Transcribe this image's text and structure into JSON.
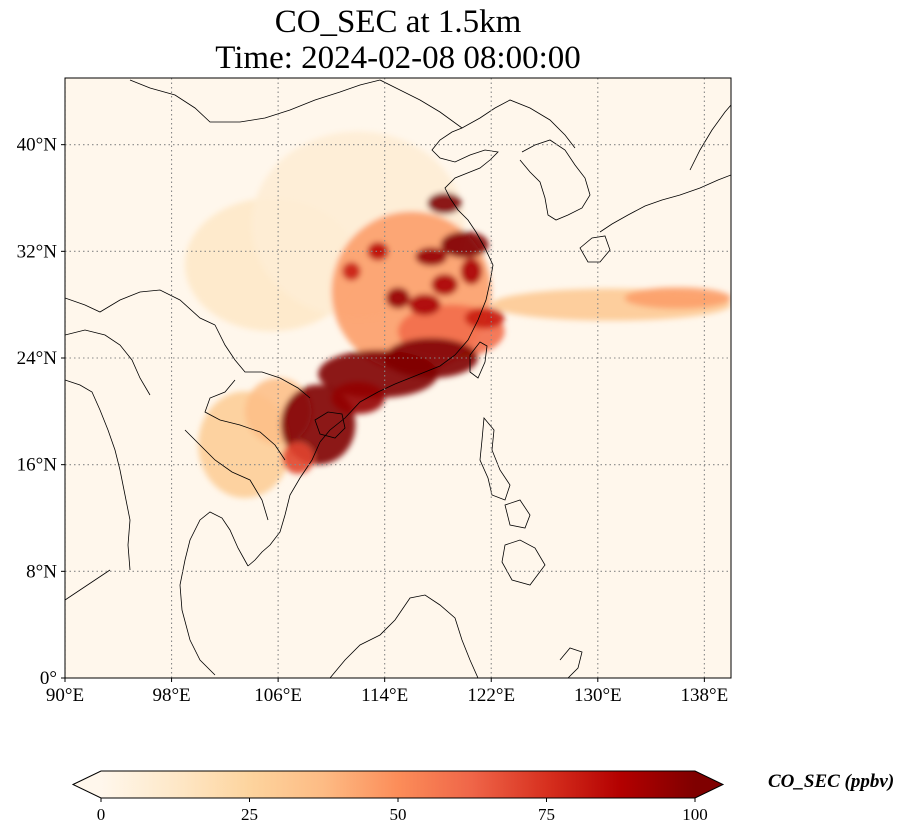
{
  "title": {
    "line1": "CO_SEC at 1.5km",
    "line2": "Time: 2024-02-08 08:00:00"
  },
  "map": {
    "extent": {
      "lon_min": 90,
      "lon_max": 140,
      "lat_min": 0,
      "lat_max": 45
    },
    "projection": "PlateCarree",
    "gridlines": "dotted",
    "colormap": "OrRd",
    "x_ticks": [
      {
        "value": 90,
        "label": "90°E"
      },
      {
        "value": 98,
        "label": "98°E"
      },
      {
        "value": 106,
        "label": "106°E"
      },
      {
        "value": 114,
        "label": "114°E"
      },
      {
        "value": 122,
        "label": "122°E"
      },
      {
        "value": 130,
        "label": "130°E"
      },
      {
        "value": 138,
        "label": "138°E"
      }
    ],
    "y_ticks": [
      {
        "value": 0,
        "label": "0°"
      },
      {
        "value": 8,
        "label": "8°N"
      },
      {
        "value": 16,
        "label": "16°N"
      },
      {
        "value": 24,
        "label": "24°N"
      },
      {
        "value": 32,
        "label": "32°N"
      },
      {
        "value": 40,
        "label": "40°N"
      }
    ],
    "plumes": [
      {
        "lon": 105.5,
        "lat": 31.0,
        "r_lon": 6.5,
        "r_lat": 5.0,
        "value": 12
      },
      {
        "lon": 112.0,
        "lat": 34.0,
        "r_lon": 8.0,
        "r_lat": 7.0,
        "value": 8
      },
      {
        "lon": 103.5,
        "lat": 17.5,
        "r_lon": 3.5,
        "r_lat": 4.0,
        "value": 28
      },
      {
        "lon": 106.0,
        "lat": 20.0,
        "r_lon": 2.5,
        "r_lat": 2.5,
        "value": 35
      },
      {
        "lon": 116.0,
        "lat": 29.0,
        "r_lon": 6.0,
        "r_lat": 6.0,
        "value": 45
      },
      {
        "lon": 119.0,
        "lat": 26.0,
        "r_lon": 4.0,
        "r_lat": 2.0,
        "value": 60
      },
      {
        "lon": 131.0,
        "lat": 28.0,
        "r_lon": 9.0,
        "r_lat": 1.2,
        "value": 30
      },
      {
        "lon": 136.0,
        "lat": 28.5,
        "r_lon": 4.0,
        "r_lat": 0.8,
        "value": 45
      },
      {
        "lon": 109.0,
        "lat": 19.0,
        "r_lon": 2.8,
        "r_lat": 3.0,
        "value": 100
      },
      {
        "lon": 113.5,
        "lat": 22.8,
        "r_lon": 4.5,
        "r_lat": 1.8,
        "value": 100
      },
      {
        "lon": 117.5,
        "lat": 24.0,
        "r_lon": 3.5,
        "r_lat": 1.5,
        "value": 100
      },
      {
        "lon": 112.0,
        "lat": 21.0,
        "r_lon": 2.0,
        "r_lat": 1.2,
        "value": 95
      },
      {
        "lon": 118.5,
        "lat": 35.6,
        "r_lon": 1.3,
        "r_lat": 0.8,
        "value": 100
      },
      {
        "lon": 120.0,
        "lat": 32.5,
        "r_lon": 1.8,
        "r_lat": 1.0,
        "value": 100
      },
      {
        "lon": 117.5,
        "lat": 31.6,
        "r_lon": 1.2,
        "r_lat": 0.7,
        "value": 95
      },
      {
        "lon": 115.0,
        "lat": 28.5,
        "r_lon": 0.9,
        "r_lat": 0.8,
        "value": 95
      },
      {
        "lon": 117.0,
        "lat": 28.0,
        "r_lon": 1.2,
        "r_lat": 0.8,
        "value": 90
      },
      {
        "lon": 118.5,
        "lat": 29.5,
        "r_lon": 1.0,
        "r_lat": 0.8,
        "value": 90
      },
      {
        "lon": 113.5,
        "lat": 32.0,
        "r_lon": 0.8,
        "r_lat": 0.7,
        "value": 85
      },
      {
        "lon": 111.5,
        "lat": 30.5,
        "r_lon": 0.7,
        "r_lat": 0.7,
        "value": 80
      },
      {
        "lon": 120.5,
        "lat": 30.5,
        "r_lon": 0.8,
        "r_lat": 1.0,
        "value": 90
      },
      {
        "lon": 121.5,
        "lat": 27.0,
        "r_lon": 1.5,
        "r_lat": 0.8,
        "value": 80
      },
      {
        "lon": 107.5,
        "lat": 16.5,
        "r_lon": 1.2,
        "r_lat": 1.2,
        "value": 70
      }
    ]
  },
  "colorbar": {
    "title": "CO_SEC (ppbv)",
    "min": 0,
    "max": 100,
    "ticks": [
      {
        "value": 0,
        "label": "0"
      },
      {
        "value": 25,
        "label": "25"
      },
      {
        "value": 50,
        "label": "50"
      },
      {
        "value": 75,
        "label": "75"
      },
      {
        "value": 100,
        "label": "100"
      }
    ],
    "colors": [
      "#fff7ec",
      "#fee8c8",
      "#fdd49e",
      "#fdbb84",
      "#fc8d59",
      "#ef6548",
      "#d7301f",
      "#b30000",
      "#7f0000"
    ],
    "extend": "both"
  }
}
